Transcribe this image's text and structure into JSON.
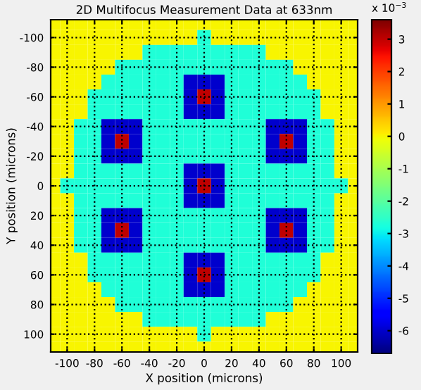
{
  "chart_data": {
    "type": "heatmap",
    "title": "2D Multifocus Measurement Data at 633nm",
    "xlabel": "X position (microns)",
    "ylabel": "Y position (microns)",
    "x": [
      -110,
      -100,
      -90,
      -80,
      -70,
      -60,
      -50,
      -40,
      -30,
      -20,
      -10,
      0,
      10,
      20,
      30,
      40,
      50,
      60,
      70,
      80,
      90,
      100,
      110
    ],
    "y": [
      -110,
      -100,
      -90,
      -80,
      -70,
      -60,
      -50,
      -40,
      -30,
      -20,
      -10,
      0,
      10,
      20,
      30,
      40,
      50,
      60,
      70,
      80,
      90,
      100,
      110
    ],
    "cells": [
      [
        0,
        0,
        0,
        0,
        0,
        0,
        0,
        0,
        0,
        0,
        0,
        0,
        0,
        0,
        0,
        0,
        0,
        0,
        0,
        0,
        0,
        0,
        0
      ],
      [
        0,
        0,
        0,
        0,
        0,
        0,
        0,
        0,
        0,
        0,
        0,
        -2.7,
        0,
        0,
        0,
        0,
        0,
        0,
        0,
        0,
        0,
        0,
        0
      ],
      [
        0,
        0,
        0,
        0,
        0,
        0,
        0,
        -2.7,
        -2.7,
        -2.7,
        -2.7,
        -2.7,
        -2.7,
        -2.7,
        -2.7,
        -2.7,
        0,
        0,
        0,
        0,
        0,
        0,
        0
      ],
      [
        0,
        0,
        0,
        0,
        0,
        -2.7,
        -2.7,
        -2.7,
        -2.7,
        -2.7,
        -2.7,
        -2.7,
        -2.7,
        -2.7,
        -2.7,
        -2.7,
        -2.7,
        -2.7,
        0,
        0,
        0,
        0,
        0
      ],
      [
        0,
        0,
        0,
        0,
        -2.7,
        -2.7,
        -2.7,
        -2.7,
        -2.7,
        -2.7,
        -6,
        -6,
        -6,
        -2.7,
        -2.7,
        -2.7,
        -2.7,
        -2.7,
        -2.7,
        0,
        0,
        0,
        0
      ],
      [
        0,
        0,
        0,
        -2.7,
        -2.7,
        -2.7,
        -2.7,
        -2.7,
        -2.7,
        -2.7,
        -6,
        3,
        -6,
        -2.7,
        -2.7,
        -2.7,
        -2.7,
        -2.7,
        -2.7,
        -2.7,
        0,
        0,
        0
      ],
      [
        0,
        0,
        0,
        -2.7,
        -2.7,
        -2.7,
        -2.7,
        -2.7,
        -2.7,
        -2.7,
        -6,
        -6,
        -6,
        -2.7,
        -2.7,
        -2.7,
        -2.7,
        -2.7,
        -2.7,
        -2.7,
        0,
        0,
        0
      ],
      [
        0,
        0,
        -2.7,
        -2.7,
        -6,
        -6,
        -6,
        -2.7,
        -2.7,
        -2.7,
        -2.7,
        -2.7,
        -2.7,
        -2.7,
        -2.7,
        -2.7,
        -6,
        -6,
        -6,
        -2.7,
        -2.7,
        0,
        0
      ],
      [
        0,
        0,
        -2.7,
        -2.7,
        -6,
        3,
        -6,
        -2.7,
        -2.7,
        -2.7,
        -2.7,
        -2.7,
        -2.7,
        -2.7,
        -2.7,
        -2.7,
        -6,
        3,
        -6,
        -2.7,
        -2.7,
        0,
        0
      ],
      [
        0,
        0,
        -2.7,
        -2.7,
        -6,
        -6,
        -6,
        -2.7,
        -2.7,
        -2.7,
        -2.7,
        -2.7,
        -2.7,
        -2.7,
        -2.7,
        -2.7,
        -6,
        -6,
        -6,
        -2.7,
        -2.7,
        0,
        0
      ],
      [
        0,
        0,
        -2.7,
        -2.7,
        -2.7,
        -2.7,
        -2.7,
        -2.7,
        -2.7,
        -2.7,
        -6,
        -6,
        -6,
        -2.7,
        -2.7,
        -2.7,
        -2.7,
        -2.7,
        -2.7,
        -2.7,
        -2.7,
        0,
        0
      ],
      [
        0,
        -2.7,
        -2.7,
        -2.7,
        -2.7,
        -2.7,
        -2.7,
        -2.7,
        -2.7,
        -2.7,
        -6,
        3,
        -6,
        -2.7,
        -2.7,
        -2.7,
        -2.7,
        -2.7,
        -2.7,
        -2.7,
        -2.7,
        -2.7,
        0
      ],
      [
        0,
        0,
        -2.7,
        -2.7,
        -2.7,
        -2.7,
        -2.7,
        -2.7,
        -2.7,
        -2.7,
        -6,
        -6,
        -6,
        -2.7,
        -2.7,
        -2.7,
        -2.7,
        -2.7,
        -2.7,
        -2.7,
        -2.7,
        0,
        0
      ],
      [
        0,
        0,
        -2.7,
        -2.7,
        -6,
        -6,
        -6,
        -2.7,
        -2.7,
        -2.7,
        -2.7,
        -2.7,
        -2.7,
        -2.7,
        -2.7,
        -2.7,
        -6,
        -6,
        -6,
        -2.7,
        -2.7,
        0,
        0
      ],
      [
        0,
        0,
        -2.7,
        -2.7,
        -6,
        3,
        -6,
        -2.7,
        -2.7,
        -2.7,
        -2.7,
        -2.7,
        -2.7,
        -2.7,
        -2.7,
        -2.7,
        -6,
        3,
        -6,
        -2.7,
        -2.7,
        0,
        0
      ],
      [
        0,
        0,
        -2.7,
        -2.7,
        -6,
        -6,
        -6,
        -2.7,
        -2.7,
        -2.7,
        -2.7,
        -2.7,
        -2.7,
        -2.7,
        -2.7,
        -2.7,
        -6,
        -6,
        -6,
        -2.7,
        -2.7,
        0,
        0
      ],
      [
        0,
        0,
        0,
        -2.7,
        -2.7,
        -2.7,
        -2.7,
        -2.7,
        -2.7,
        -2.7,
        -6,
        -6,
        -6,
        -2.7,
        -2.7,
        -2.7,
        -2.7,
        -2.7,
        -2.7,
        -2.7,
        0,
        0,
        0
      ],
      [
        0,
        0,
        0,
        -2.7,
        -2.7,
        -2.7,
        -2.7,
        -2.7,
        -2.7,
        -2.7,
        -6,
        3,
        -6,
        -2.7,
        -2.7,
        -2.7,
        -2.7,
        -2.7,
        -2.7,
        -2.7,
        0,
        0,
        0
      ],
      [
        0,
        0,
        0,
        0,
        -2.7,
        -2.7,
        -2.7,
        -2.7,
        -2.7,
        -2.7,
        -6,
        -6,
        -6,
        -2.7,
        -2.7,
        -2.7,
        -2.7,
        -2.7,
        -2.7,
        0,
        0,
        0,
        0
      ],
      [
        0,
        0,
        0,
        0,
        0,
        -2.7,
        -2.7,
        -2.7,
        -2.7,
        -2.7,
        -2.7,
        -2.7,
        -2.7,
        -2.7,
        -2.7,
        -2.7,
        -2.7,
        -2.7,
        0,
        0,
        0,
        0,
        0
      ],
      [
        0,
        0,
        0,
        0,
        0,
        0,
        0,
        -2.7,
        -2.7,
        -2.7,
        -2.7,
        -2.7,
        -2.7,
        -2.7,
        -2.7,
        -2.7,
        0,
        0,
        0,
        0,
        0,
        0,
        0
      ],
      [
        0,
        0,
        0,
        0,
        0,
        0,
        0,
        0,
        0,
        0,
        0,
        -2.7,
        0,
        0,
        0,
        0,
        0,
        0,
        0,
        0,
        0,
        0,
        0
      ],
      [
        0,
        0,
        0,
        0,
        0,
        0,
        0,
        0,
        0,
        0,
        0,
        0,
        0,
        0,
        0,
        0,
        0,
        0,
        0,
        0,
        0,
        0,
        0
      ]
    ],
    "xlim": [
      -112,
      112
    ],
    "ylim": [
      112,
      -112
    ],
    "xticks": [
      -100,
      -80,
      -60,
      -40,
      -20,
      0,
      20,
      40,
      60,
      80,
      100
    ],
    "yticks": [
      -100,
      -80,
      -60,
      -40,
      -20,
      0,
      20,
      40,
      60,
      80,
      100
    ],
    "clim": [
      -6.7,
      3.6
    ],
    "cticks": [
      -6,
      -5,
      -4,
      -3,
      -2,
      -1,
      0,
      1,
      2,
      3
    ],
    "annotations": [
      "x 10$^{−3}$"
    ],
    "grid": true
  }
}
